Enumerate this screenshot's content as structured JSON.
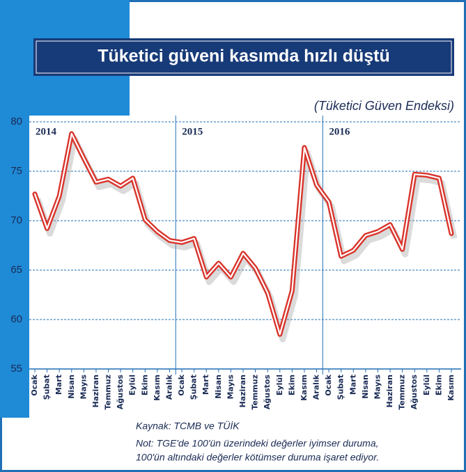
{
  "chart_data": {
    "type": "line",
    "title": "Tüketici güveni kasımda hızlı düştü",
    "subtitle": "(Tüketici Güven Endeksi)",
    "categories": [
      "Ocak",
      "Şubat",
      "Mart",
      "Nisan",
      "Mayıs",
      "Haziran",
      "Temmuz",
      "Ağustos",
      "Eylül",
      "Ekim",
      "Kasım",
      "Aralık",
      "Ocak",
      "Şubat",
      "Mart",
      "Nisan",
      "Mayıs",
      "Haziran",
      "Temmuz",
      "Ağustos",
      "Eylül",
      "Ekim",
      "Kasım",
      "Aralık",
      "Ocak",
      "Şubat",
      "Mart",
      "Nisan",
      "Mayıs",
      "Haziran",
      "Temmuz",
      "Ağustos",
      "Eylül",
      "Ekim",
      "Kasım"
    ],
    "years": [
      "2014",
      "2015",
      "2016"
    ],
    "values": [
      72.7,
      69.2,
      72.5,
      78.8,
      76.3,
      73.9,
      74.2,
      73.5,
      74.3,
      70.1,
      68.9,
      68.0,
      67.8,
      68.2,
      64.3,
      65.7,
      64.3,
      66.7,
      65.2,
      62.7,
      58.5,
      62.9,
      77.4,
      73.6,
      71.9,
      66.4,
      67.0,
      68.5,
      68.9,
      69.6,
      67.1,
      74.7,
      74.6,
      74.3,
      68.7
    ],
    "color": "#d9342b",
    "ylim": [
      55,
      80
    ],
    "yticks": [
      55,
      60,
      65,
      70,
      75,
      80
    ],
    "grid": true,
    "source": "Kaynak: TCMB ve TÜİK",
    "notes": [
      "Not: TGE'de 100'ün üzerindeki değerler iyimser duruma,",
      "100'ün altındaki değerler kötümser duruma işaret ediyor."
    ]
  }
}
